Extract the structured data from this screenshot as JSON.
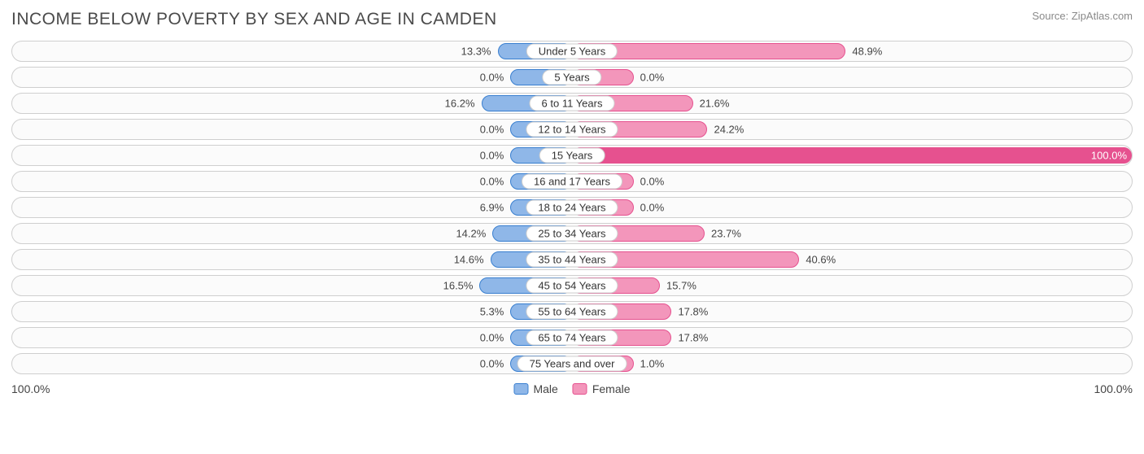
{
  "title": "INCOME BELOW POVERTY BY SEX AND AGE IN CAMDEN",
  "source": "Source: ZipAtlas.com",
  "chart": {
    "type": "diverging-bar",
    "background_color": "#ffffff",
    "track_bg": "#fbfbfb",
    "track_border": "#cfcfcf",
    "label_fontsize": 13,
    "title_fontsize": 21,
    "title_color": "#4a4a4a",
    "source_fontsize": 13,
    "source_color": "#8a8a8a",
    "axis_min_label": "100.0%",
    "axis_max_label": "100.0%",
    "male": {
      "fill": "#8fb7e8",
      "border": "#397fd0",
      "min_bar_pct": 11.0
    },
    "female": {
      "fill": "#f396bb",
      "border": "#e6518f",
      "min_bar_pct": 11.0
    },
    "rows": [
      {
        "age": "Under 5 Years",
        "male": 13.3,
        "female": 48.9
      },
      {
        "age": "5 Years",
        "male": 0.0,
        "female": 0.0
      },
      {
        "age": "6 to 11 Years",
        "male": 16.2,
        "female": 21.6
      },
      {
        "age": "12 to 14 Years",
        "male": 0.0,
        "female": 24.2
      },
      {
        "age": "15 Years",
        "male": 0.0,
        "female": 100.0
      },
      {
        "age": "16 and 17 Years",
        "male": 0.0,
        "female": 0.0
      },
      {
        "age": "18 to 24 Years",
        "male": 6.9,
        "female": 0.0
      },
      {
        "age": "25 to 34 Years",
        "male": 14.2,
        "female": 23.7
      },
      {
        "age": "35 to 44 Years",
        "male": 14.6,
        "female": 40.6
      },
      {
        "age": "45 to 54 Years",
        "male": 16.5,
        "female": 15.7
      },
      {
        "age": "55 to 64 Years",
        "male": 5.3,
        "female": 17.8
      },
      {
        "age": "65 to 74 Years",
        "male": 0.0,
        "female": 17.8
      },
      {
        "age": "75 Years and over",
        "male": 0.0,
        "female": 1.0
      }
    ]
  },
  "legend": {
    "male_label": "Male",
    "female_label": "Female"
  }
}
